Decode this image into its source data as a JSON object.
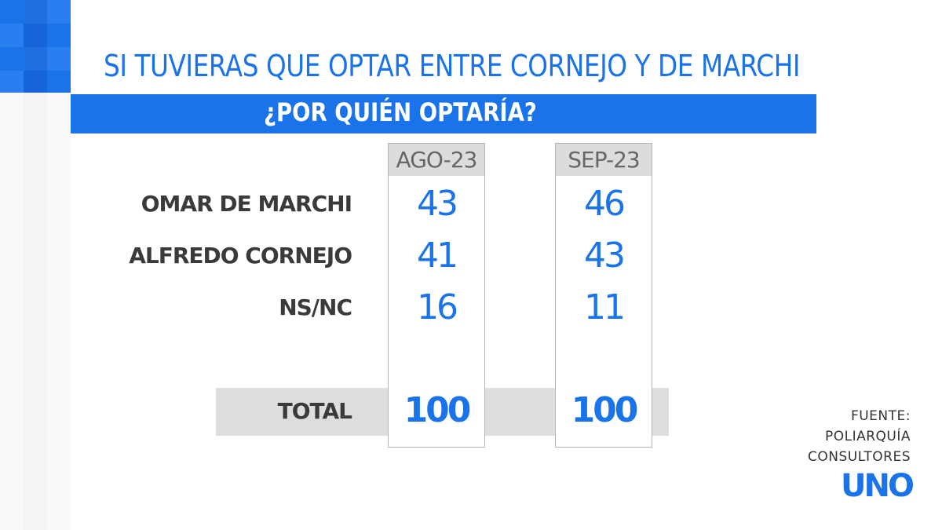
{
  "chart_data": {
    "type": "table",
    "title": "SI TUVIERAS QUE OPTAR ENTRE CORNEJO Y DE MARCHI",
    "subtitle": "¿POR QUIÉN OPTARÍA?",
    "columns": [
      "AGO-23",
      "SEP-23"
    ],
    "rows": [
      {
        "label": "OMAR DE MARCHI",
        "values": [
          "43",
          "46"
        ]
      },
      {
        "label": "ALFREDO CORNEJO",
        "values": [
          "41",
          "43"
        ]
      },
      {
        "label": "NS/NC",
        "values": [
          "16",
          "11"
        ]
      }
    ],
    "total": {
      "label": "TOTAL",
      "values": [
        "100",
        "100"
      ]
    }
  },
  "source": {
    "line1": "FUENTE:",
    "line2": "POLIARQUÍA",
    "line3": "CONSULTORES"
  },
  "logo": {
    "text": "UNO"
  },
  "colors": {
    "accent": "#1a73e8",
    "header_gray": "#dcdcdc",
    "label": "#3a3a3a"
  }
}
